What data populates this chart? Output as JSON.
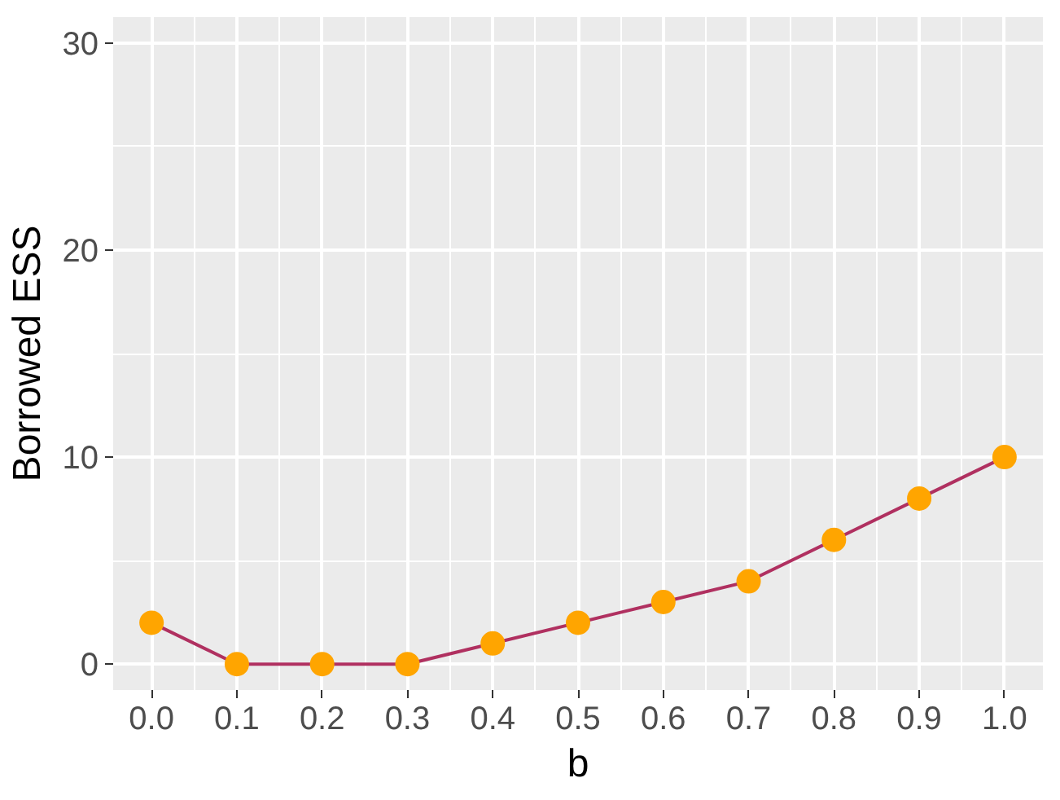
{
  "chart_data": {
    "type": "line",
    "xlabel": "b",
    "ylabel": "Borrowed ESS",
    "x": [
      0.0,
      0.1,
      0.2,
      0.3,
      0.4,
      0.5,
      0.6,
      0.7,
      0.8,
      0.9,
      1.0
    ],
    "series": [
      {
        "color": "#b03060",
        "colors": [
          "#ffa500",
          "#ffa500",
          "#ffa500",
          "#ffa500",
          "#ffa500",
          "#ffa500",
          "#ffa500",
          "#ffa500",
          "#ffa500",
          "#ffa500",
          "#ffa500"
        ],
        "values": [
          2,
          0,
          0,
          0,
          1,
          2,
          3,
          4,
          6,
          8,
          10
        ]
      }
    ],
    "xlim": [
      -0.045,
      1.045
    ],
    "ylim": [
      -1.25,
      31.25
    ],
    "xticks": [
      {
        "value": 0.0,
        "label": "0.0"
      },
      {
        "value": 0.1,
        "label": "0.1"
      },
      {
        "value": 0.2,
        "label": "0.2"
      },
      {
        "value": 0.3,
        "label": "0.3"
      },
      {
        "value": 0.4,
        "label": "0.4"
      },
      {
        "value": 0.5,
        "label": "0.5"
      },
      {
        "value": 0.6,
        "label": "0.6"
      },
      {
        "value": 0.7,
        "label": "0.7"
      },
      {
        "value": 0.8,
        "label": "0.8"
      },
      {
        "value": 0.9,
        "label": "0.9"
      },
      {
        "value": 1.0,
        "label": "1.0"
      }
    ],
    "yticks": [
      0,
      10,
      20,
      30
    ],
    "grid": true,
    "marker": "circle",
    "line_style": "solid"
  }
}
